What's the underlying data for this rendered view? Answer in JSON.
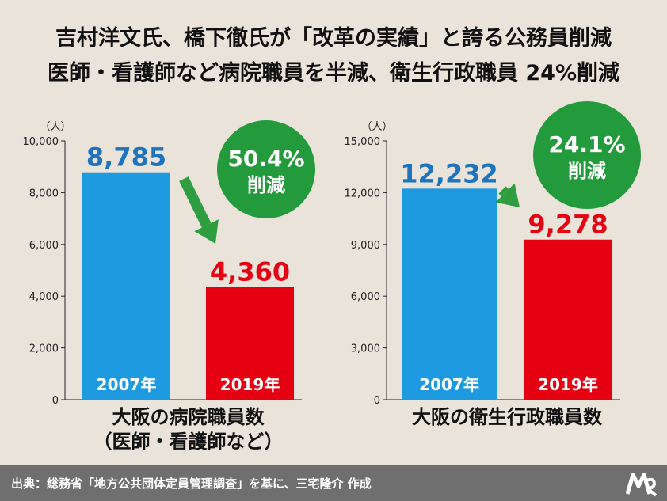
{
  "title_line1": "吉村洋文氏、橋下徹氏が「改革の実績」と誇る公務員削減",
  "title_line2": "医師・看護師など病院職員を半減、衛生行政職員 24%削減",
  "footer": {
    "source_text": "出典：総務省「地方公共団体定員管理調査」を基に、三宅隆介 作成",
    "logo_icon": "mr-logo-icon"
  },
  "colors": {
    "bar_2007": "#1e9ae0",
    "bar_2019": "#e50012",
    "label_2007": "#1e73be",
    "label_2019": "#e50012",
    "badge": "#239b3d",
    "arrow": "#2f9e41",
    "background": "#e9e3d9",
    "footer": "#6f6f6f"
  },
  "chart_data": [
    {
      "type": "bar",
      "unit_label": "（人）",
      "categories": [
        "2007年",
        "2019年"
      ],
      "values": [
        8785,
        4360
      ],
      "value_labels": [
        "8,785",
        "4,360"
      ],
      "ylim": [
        0,
        10000
      ],
      "yticks": [
        0,
        2000,
        4000,
        6000,
        8000,
        10000
      ],
      "ytick_labels": [
        "0",
        "2,000",
        "4,000",
        "6,000",
        "8,000",
        "10,000"
      ],
      "badge": {
        "percent": "50.4%",
        "text": "削減"
      },
      "xlabel_lines": [
        "大阪の病院職員数",
        "（医師・看護師など）"
      ]
    },
    {
      "type": "bar",
      "unit_label": "（人）",
      "categories": [
        "2007年",
        "2019年"
      ],
      "values": [
        12232,
        9278
      ],
      "value_labels": [
        "12,232",
        "9,278"
      ],
      "ylim": [
        0,
        15000
      ],
      "yticks": [
        0,
        3000,
        6000,
        9000,
        12000,
        15000
      ],
      "ytick_labels": [
        "0",
        "3,000",
        "6,000",
        "9,000",
        "12,000",
        "15,000"
      ],
      "badge": {
        "percent": "24.1%",
        "text": "削減"
      },
      "xlabel_lines": [
        "大阪の衛生行政職員数"
      ]
    }
  ]
}
